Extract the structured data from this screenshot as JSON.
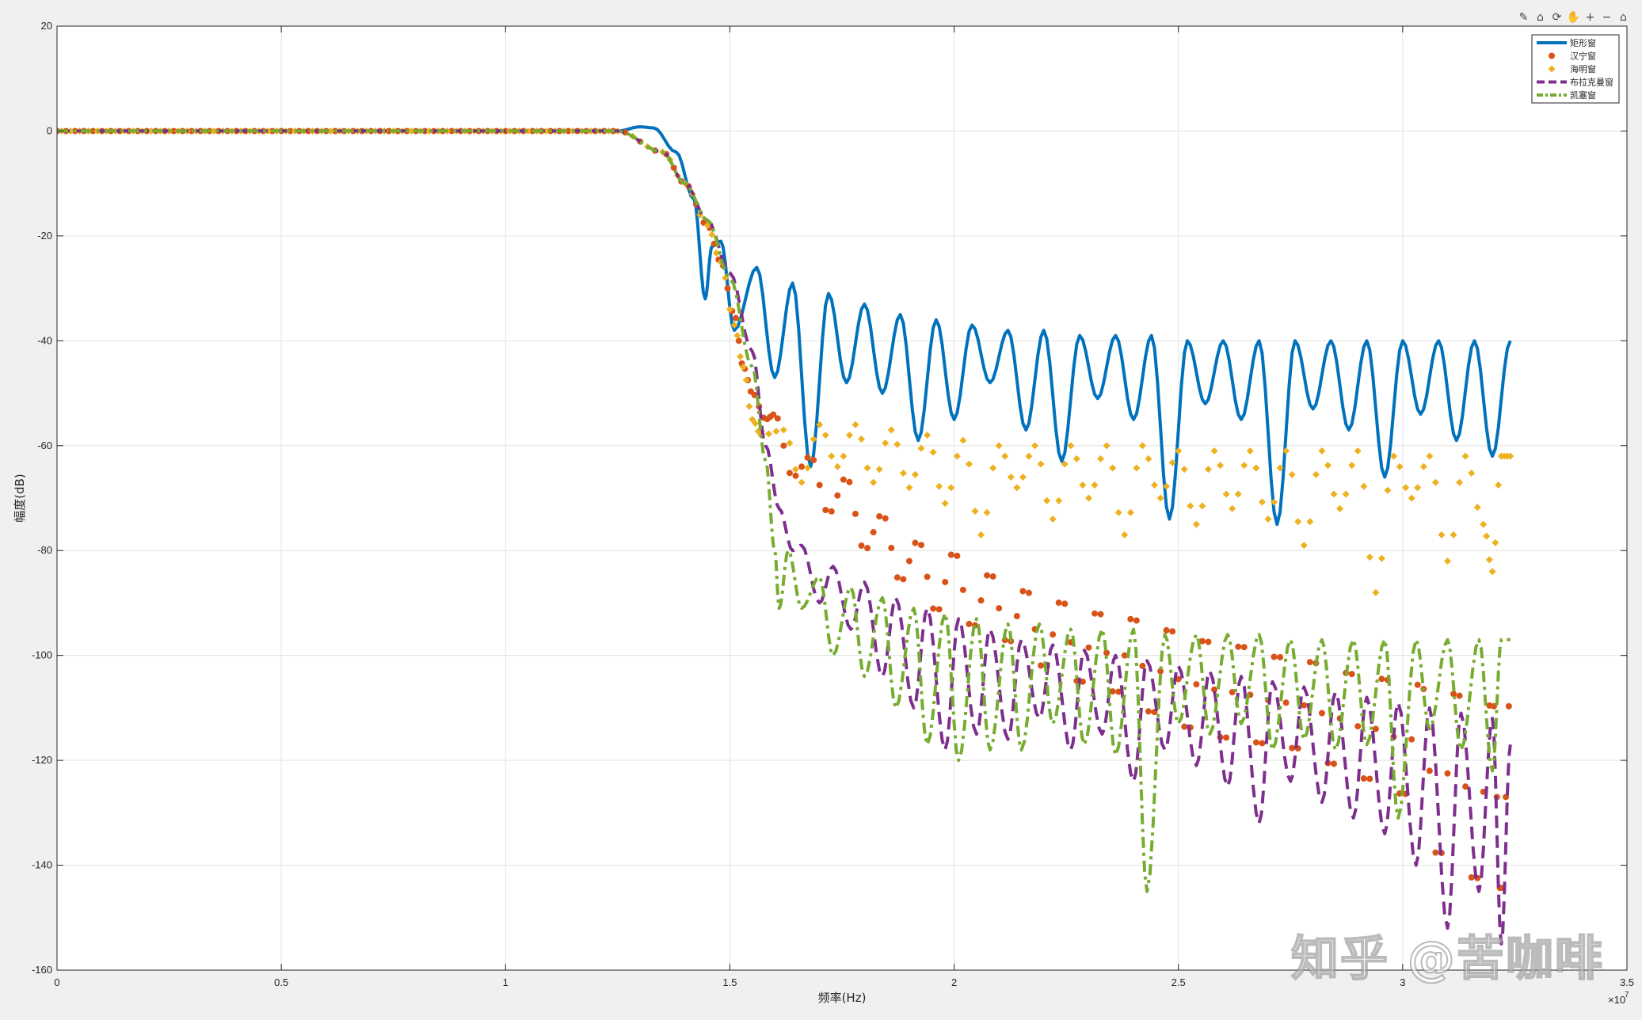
{
  "toolbar": {
    "items": [
      {
        "name": "brush-icon",
        "glyph": "✎"
      },
      {
        "name": "datatip-icon",
        "glyph": "⌂"
      },
      {
        "name": "rotate-icon",
        "glyph": "⟳"
      },
      {
        "name": "pan-icon",
        "glyph": "✋"
      },
      {
        "name": "zoom-in-icon",
        "glyph": "+"
      },
      {
        "name": "zoom-out-icon",
        "glyph": "−"
      },
      {
        "name": "home-icon",
        "glyph": "⌂"
      }
    ]
  },
  "watermark": "知乎 @苦咖啡",
  "chart_data": {
    "type": "line",
    "title": "",
    "xlabel": "频率(Hz)",
    "ylabel": "幅度(dB)",
    "x_exponent_label": "×10",
    "x_exponent": "7",
    "xlim": [
      0,
      3.5
    ],
    "ylim": [
      -160,
      20
    ],
    "xticks": [
      0,
      0.5,
      1,
      1.5,
      2,
      2.5,
      3,
      3.5
    ],
    "xtick_labels": [
      "0",
      "0.5",
      "1",
      "1.5",
      "2",
      "2.5",
      "3",
      "3.5"
    ],
    "yticks": [
      20,
      0,
      -20,
      -40,
      -60,
      -80,
      -100,
      -120,
      -140,
      -160
    ],
    "ytick_labels": [
      "20",
      "0",
      "-20",
      "-40",
      "-60",
      "-80",
      "-100",
      "-120",
      "-140",
      "-160"
    ],
    "grid": true,
    "legend_position": "top-right",
    "colors": {
      "rect": "#0072BD",
      "hanning": "#D95319",
      "hamming": "#EDB120",
      "blackman": "#7E2F8E",
      "kaiser": "#77AC30"
    },
    "series": [
      {
        "name": "矩形窗",
        "style": "solid-line",
        "color": "#0072BD",
        "passband_end": 1.25,
        "transition": [
          [
            1.25,
            0
          ],
          [
            1.3,
            0.8
          ],
          [
            1.33,
            0.6
          ],
          [
            1.38,
            -4
          ],
          [
            1.42,
            -13
          ],
          [
            1.445,
            -32
          ],
          [
            1.46,
            -22
          ],
          [
            1.48,
            -21
          ],
          [
            1.51,
            -38
          ]
        ],
        "sidelobe_peaks": [
          [
            1.56,
            -26
          ],
          [
            1.64,
            -29
          ],
          [
            1.72,
            -31
          ],
          [
            1.8,
            -33
          ],
          [
            1.88,
            -35
          ],
          [
            1.96,
            -36
          ],
          [
            2.04,
            -37
          ],
          [
            2.12,
            -38
          ],
          [
            2.2,
            -38
          ],
          [
            2.28,
            -39
          ],
          [
            2.36,
            -39
          ],
          [
            2.44,
            -39
          ],
          [
            2.52,
            -40
          ],
          [
            2.6,
            -40
          ],
          [
            2.68,
            -40
          ],
          [
            2.76,
            -40
          ],
          [
            2.84,
            -40
          ],
          [
            2.92,
            -40
          ],
          [
            3.0,
            -40
          ],
          [
            3.08,
            -40
          ],
          [
            3.16,
            -40
          ]
        ],
        "nulls": [
          [
            1.6,
            -47
          ],
          [
            1.68,
            -64
          ],
          [
            1.76,
            -48
          ],
          [
            1.84,
            -50
          ],
          [
            1.92,
            -59
          ],
          [
            2.0,
            -55
          ],
          [
            2.08,
            -48
          ],
          [
            2.16,
            -57
          ],
          [
            2.24,
            -63
          ],
          [
            2.32,
            -51
          ],
          [
            2.4,
            -55
          ],
          [
            2.48,
            -74
          ],
          [
            2.56,
            -52
          ],
          [
            2.64,
            -55
          ],
          [
            2.72,
            -75
          ],
          [
            2.8,
            -53
          ],
          [
            2.88,
            -57
          ],
          [
            2.96,
            -66
          ],
          [
            3.04,
            -54
          ],
          [
            3.12,
            -59
          ],
          [
            3.2,
            -62
          ]
        ],
        "end": [
          3.24,
          -40
        ]
      },
      {
        "name": "汉宁窗",
        "style": "circle-markers",
        "color": "#D95319",
        "passband_end": 1.25,
        "transition": [
          [
            1.25,
            0
          ],
          [
            1.35,
            -4
          ],
          [
            1.4,
            -10
          ],
          [
            1.45,
            -18
          ],
          [
            1.48,
            -25
          ],
          [
            1.51,
            -35
          ],
          [
            1.53,
            -45
          ],
          [
            1.55,
            -50
          ],
          [
            1.58,
            -55
          ]
        ],
        "sidelobe_peaks": [
          [
            1.6,
            -54
          ],
          [
            1.68,
            -62
          ],
          [
            1.76,
            -66
          ],
          [
            1.84,
            -73
          ],
          [
            1.92,
            -78
          ],
          [
            2.0,
            -80
          ],
          [
            2.08,
            -84
          ],
          [
            2.16,
            -87
          ],
          [
            2.24,
            -89
          ],
          [
            2.32,
            -91
          ],
          [
            2.4,
            -92
          ],
          [
            2.48,
            -94
          ],
          [
            2.56,
            -96
          ],
          [
            2.64,
            -97
          ],
          [
            2.72,
            -99
          ],
          [
            2.8,
            -100
          ],
          [
            2.88,
            -102
          ],
          [
            2.96,
            -103
          ],
          [
            3.04,
            -104
          ],
          [
            3.12,
            -105
          ],
          [
            3.2,
            -107
          ]
        ],
        "nulls": [
          [
            1.64,
            -66
          ],
          [
            1.72,
            -73
          ],
          [
            1.8,
            -80
          ],
          [
            1.88,
            -86
          ],
          [
            1.96,
            -92
          ],
          [
            2.04,
            -95
          ],
          [
            2.12,
            -98
          ],
          [
            2.2,
            -103
          ],
          [
            2.28,
            -106
          ],
          [
            2.36,
            -108
          ],
          [
            2.44,
            -112
          ],
          [
            2.52,
            -115
          ],
          [
            2.6,
            -117
          ],
          [
            2.68,
            -118
          ],
          [
            2.76,
            -119
          ],
          [
            2.84,
            -122
          ],
          [
            2.92,
            -125
          ],
          [
            3.0,
            -128
          ],
          [
            3.08,
            -140
          ],
          [
            3.16,
            -145
          ],
          [
            3.22,
            -147
          ]
        ],
        "end": [
          3.24,
          -107
        ]
      },
      {
        "name": "海明窗",
        "style": "diamond-markers",
        "color": "#EDB120",
        "passband_end": 1.25,
        "transition": [
          [
            1.25,
            0
          ],
          [
            1.35,
            -4
          ],
          [
            1.4,
            -10
          ],
          [
            1.45,
            -18
          ],
          [
            1.48,
            -25
          ],
          [
            1.51,
            -37
          ],
          [
            1.53,
            -45
          ],
          [
            1.55,
            -55
          ],
          [
            1.57,
            -58
          ]
        ],
        "sidelobe_peaks": [
          [
            1.62,
            -57
          ],
          [
            1.7,
            -56
          ],
          [
            1.78,
            -56
          ],
          [
            1.86,
            -57
          ],
          [
            1.94,
            -58
          ],
          [
            2.02,
            -59
          ],
          [
            2.1,
            -60
          ],
          [
            2.18,
            -60
          ],
          [
            2.26,
            -60
          ],
          [
            2.34,
            -60
          ],
          [
            2.42,
            -60
          ],
          [
            2.5,
            -61
          ],
          [
            2.58,
            -61
          ],
          [
            2.66,
            -61
          ],
          [
            2.74,
            -61
          ],
          [
            2.82,
            -61
          ],
          [
            2.9,
            -61
          ],
          [
            2.98,
            -62
          ],
          [
            3.06,
            -62
          ],
          [
            3.14,
            -62
          ],
          [
            3.22,
            -62
          ]
        ],
        "nulls": [
          [
            1.66,
            -67
          ],
          [
            1.74,
            -64
          ],
          [
            1.82,
            -67
          ],
          [
            1.9,
            -68
          ],
          [
            1.98,
            -71
          ],
          [
            2.06,
            -77
          ],
          [
            2.14,
            -68
          ],
          [
            2.22,
            -74
          ],
          [
            2.3,
            -70
          ],
          [
            2.38,
            -77
          ],
          [
            2.46,
            -70
          ],
          [
            2.54,
            -75
          ],
          [
            2.62,
            -72
          ],
          [
            2.7,
            -74
          ],
          [
            2.78,
            -79
          ],
          [
            2.86,
            -72
          ],
          [
            2.94,
            -88
          ],
          [
            3.02,
            -70
          ],
          [
            3.1,
            -82
          ],
          [
            3.18,
            -75
          ],
          [
            3.2,
            -84
          ]
        ],
        "end": [
          3.24,
          -62
        ]
      },
      {
        "name": "布拉克曼窗",
        "style": "dashed-line",
        "color": "#7E2F8E",
        "passband_end": 1.25,
        "transition": [
          [
            1.25,
            0
          ],
          [
            1.35,
            -4
          ],
          [
            1.4,
            -10
          ],
          [
            1.45,
            -17
          ],
          [
            1.5,
            -27
          ],
          [
            1.55,
            -42
          ],
          [
            1.58,
            -60
          ],
          [
            1.61,
            -72
          ],
          [
            1.64,
            -80
          ]
        ],
        "sidelobe_peaks": [
          [
            1.66,
            -79
          ],
          [
            1.73,
            -83
          ],
          [
            1.8,
            -86
          ],
          [
            1.87,
            -89
          ],
          [
            1.94,
            -91
          ],
          [
            2.01,
            -93
          ],
          [
            2.08,
            -95
          ],
          [
            2.15,
            -97
          ],
          [
            2.22,
            -98
          ],
          [
            2.29,
            -99
          ],
          [
            2.36,
            -100
          ],
          [
            2.43,
            -101
          ],
          [
            2.5,
            -102
          ],
          [
            2.57,
            -103
          ],
          [
            2.64,
            -104
          ],
          [
            2.71,
            -105
          ],
          [
            2.78,
            -106
          ],
          [
            2.85,
            -107
          ],
          [
            2.92,
            -108
          ],
          [
            2.99,
            -109
          ],
          [
            3.06,
            -110
          ],
          [
            3.13,
            -111
          ],
          [
            3.2,
            -112
          ]
        ],
        "nulls": [
          [
            1.7,
            -90
          ],
          [
            1.77,
            -95
          ],
          [
            1.84,
            -104
          ],
          [
            1.91,
            -110
          ],
          [
            1.98,
            -118
          ],
          [
            2.05,
            -115
          ],
          [
            2.12,
            -116
          ],
          [
            2.19,
            -112
          ],
          [
            2.26,
            -118
          ],
          [
            2.33,
            -115
          ],
          [
            2.4,
            -124
          ],
          [
            2.47,
            -118
          ],
          [
            2.54,
            -121
          ],
          [
            2.61,
            -125
          ],
          [
            2.68,
            -132
          ],
          [
            2.75,
            -124
          ],
          [
            2.82,
            -128
          ],
          [
            2.89,
            -131
          ],
          [
            2.96,
            -134
          ],
          [
            3.03,
            -140
          ],
          [
            3.1,
            -152
          ],
          [
            3.17,
            -145
          ],
          [
            3.22,
            -155
          ]
        ],
        "end": [
          3.24,
          -117
        ]
      },
      {
        "name": "凯塞窗",
        "style": "dash-dot-line",
        "color": "#77AC30",
        "passband_end": 1.25,
        "transition": [
          [
            1.25,
            0
          ],
          [
            1.35,
            -4
          ],
          [
            1.4,
            -10
          ],
          [
            1.45,
            -17
          ],
          [
            1.5,
            -28
          ],
          [
            1.55,
            -45
          ],
          [
            1.58,
            -63
          ],
          [
            1.6,
            -80
          ],
          [
            1.61,
            -91
          ]
        ],
        "sidelobe_peaks": [
          [
            1.63,
            -80
          ],
          [
            1.7,
            -85
          ],
          [
            1.77,
            -87
          ],
          [
            1.84,
            -89
          ],
          [
            1.91,
            -91
          ],
          [
            1.98,
            -92
          ],
          [
            2.05,
            -93
          ],
          [
            2.12,
            -94
          ],
          [
            2.19,
            -94
          ],
          [
            2.26,
            -95
          ],
          [
            2.33,
            -95
          ],
          [
            2.4,
            -95
          ],
          [
            2.47,
            -96
          ],
          [
            2.54,
            -96
          ],
          [
            2.61,
            -96
          ],
          [
            2.68,
            -96
          ],
          [
            2.75,
            -97
          ],
          [
            2.82,
            -97
          ],
          [
            2.89,
            -97
          ],
          [
            2.96,
            -97
          ],
          [
            3.03,
            -97
          ],
          [
            3.1,
            -97
          ],
          [
            3.17,
            -97
          ],
          [
            3.22,
            -97
          ]
        ],
        "nulls": [
          [
            1.66,
            -91
          ],
          [
            1.73,
            -100
          ],
          [
            1.8,
            -104
          ],
          [
            1.87,
            -110
          ],
          [
            1.94,
            -117
          ],
          [
            2.01,
            -120
          ],
          [
            2.08,
            -118
          ],
          [
            2.15,
            -118
          ],
          [
            2.22,
            -113
          ],
          [
            2.29,
            -117
          ],
          [
            2.36,
            -119
          ],
          [
            2.43,
            -145
          ],
          [
            2.5,
            -113
          ],
          [
            2.57,
            -115
          ],
          [
            2.64,
            -113
          ],
          [
            2.71,
            -118
          ],
          [
            2.78,
            -116
          ],
          [
            2.85,
            -118
          ],
          [
            2.92,
            -117
          ],
          [
            2.99,
            -131
          ],
          [
            3.06,
            -114
          ],
          [
            3.13,
            -118
          ],
          [
            3.2,
            -122
          ]
        ],
        "end": [
          3.24,
          -97
        ]
      }
    ]
  }
}
